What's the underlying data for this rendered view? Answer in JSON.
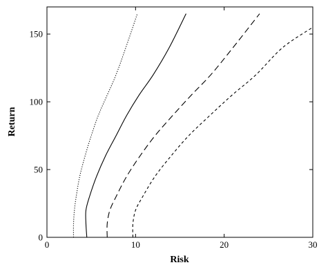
{
  "chart_data": {
    "type": "line",
    "title": "",
    "xlabel": "Risk",
    "ylabel": "Return",
    "xlim": [
      0,
      30
    ],
    "ylim": [
      0,
      170
    ],
    "grid": false,
    "legend": "none",
    "xticks": [
      0,
      10,
      20,
      30
    ],
    "yticks": [
      0,
      50,
      100,
      150
    ],
    "series": [
      {
        "style": "dotted",
        "color": "#000000",
        "x": [
          3.0,
          3.0,
          3.1,
          3.3,
          3.7,
          4.3,
          5.0,
          5.8,
          6.8,
          7.8,
          8.9,
          10.2
        ],
        "y": [
          0,
          10,
          20,
          30,
          45,
          60,
          75,
          90,
          105,
          120,
          140,
          165
        ]
      },
      {
        "style": "solid",
        "color": "#000000",
        "x": [
          4.5,
          4.4,
          4.4,
          4.8,
          5.6,
          6.6,
          7.8,
          9.0,
          10.4,
          12.0,
          13.8,
          15.7
        ],
        "y": [
          0,
          10,
          20,
          30,
          45,
          60,
          75,
          90,
          105,
          120,
          140,
          165
        ]
      },
      {
        "style": "long-dash",
        "color": "#000000",
        "x": [
          6.8,
          6.8,
          7.1,
          7.8,
          9.0,
          10.5,
          12.2,
          14.2,
          16.3,
          18.5,
          21.0,
          24.0
        ],
        "y": [
          0,
          10,
          20,
          30,
          45,
          60,
          75,
          90,
          105,
          120,
          140,
          165
        ]
      },
      {
        "style": "short-dash",
        "color": "#000000",
        "x": [
          9.7,
          9.7,
          10.0,
          10.8,
          12.2,
          14.0,
          16.0,
          18.4,
          20.9,
          23.6,
          26.6,
          30.0
        ],
        "y": [
          0,
          10,
          20,
          30,
          45,
          60,
          75,
          90,
          105,
          120,
          140,
          155
        ]
      }
    ]
  }
}
